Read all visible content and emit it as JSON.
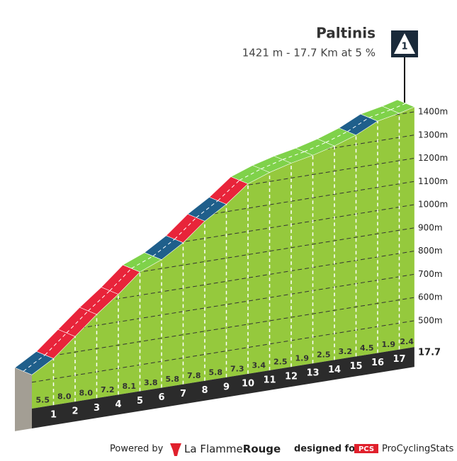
{
  "title": "Paltinis",
  "subtitle": "1421 m - 17.7 Km at 5 %",
  "marker": "1",
  "chart_data": {
    "type": "profile",
    "summit": 1421,
    "length": 17.7,
    "xticks": [
      1,
      2,
      3,
      4,
      5,
      6,
      7,
      8,
      9,
      10,
      11,
      12,
      13,
      14,
      15,
      16,
      17
    ],
    "values": [
      5.5,
      8.0,
      8.0,
      7.2,
      8.1,
      3.8,
      5.8,
      7.8,
      5.8,
      7.3,
      3.4,
      2.5,
      1.9,
      2.5,
      3.2,
      4.5,
      1.9,
      2.4
    ],
    "value_labels": [
      "5.5",
      "8.0",
      "8.0",
      "7.2",
      "8.1",
      "3.8",
      "5.8",
      "7.8",
      "5.8",
      "7.3",
      "3.4",
      "2.5",
      "1.9",
      "2.5",
      "3.2",
      "4.5",
      "1.9",
      "2.4"
    ],
    "colors": [
      "#1f5f8b",
      "#e8243a",
      "#e8243a",
      "#e8243a",
      "#e8243a",
      "#7fd24a",
      "#1f5f8b",
      "#e8243a",
      "#1f5f8b",
      "#e8243a",
      "#7fd24a",
      "#7fd24a",
      "#7fd24a",
      "#7fd24a",
      "#7fd24a",
      "#1f5f8b",
      "#7fd24a",
      "#7fd24a"
    ],
    "ylim": [
      500,
      1400
    ],
    "yticks": [
      {
        "value": 500,
        "label": "500m"
      },
      {
        "value": 600,
        "label": "600m"
      },
      {
        "value": 700,
        "label": "700m"
      },
      {
        "value": 800,
        "label": "800m"
      },
      {
        "value": 900,
        "label": "900m"
      },
      {
        "value": 1000,
        "label": "1000m"
      },
      {
        "value": 1100,
        "label": "1100m"
      },
      {
        "value": 1200,
        "label": "1200m"
      },
      {
        "value": 1300,
        "label": "1300m"
      },
      {
        "value": 1400,
        "label": "1400m"
      }
    ]
  },
  "footer": {
    "powered_by": "Powered by",
    "brand1": "La Flamme",
    "brand1b": "Rouge",
    "designed_for": "designed for",
    "pcs": "PCS",
    "brand2": "ProCyclingStats"
  }
}
